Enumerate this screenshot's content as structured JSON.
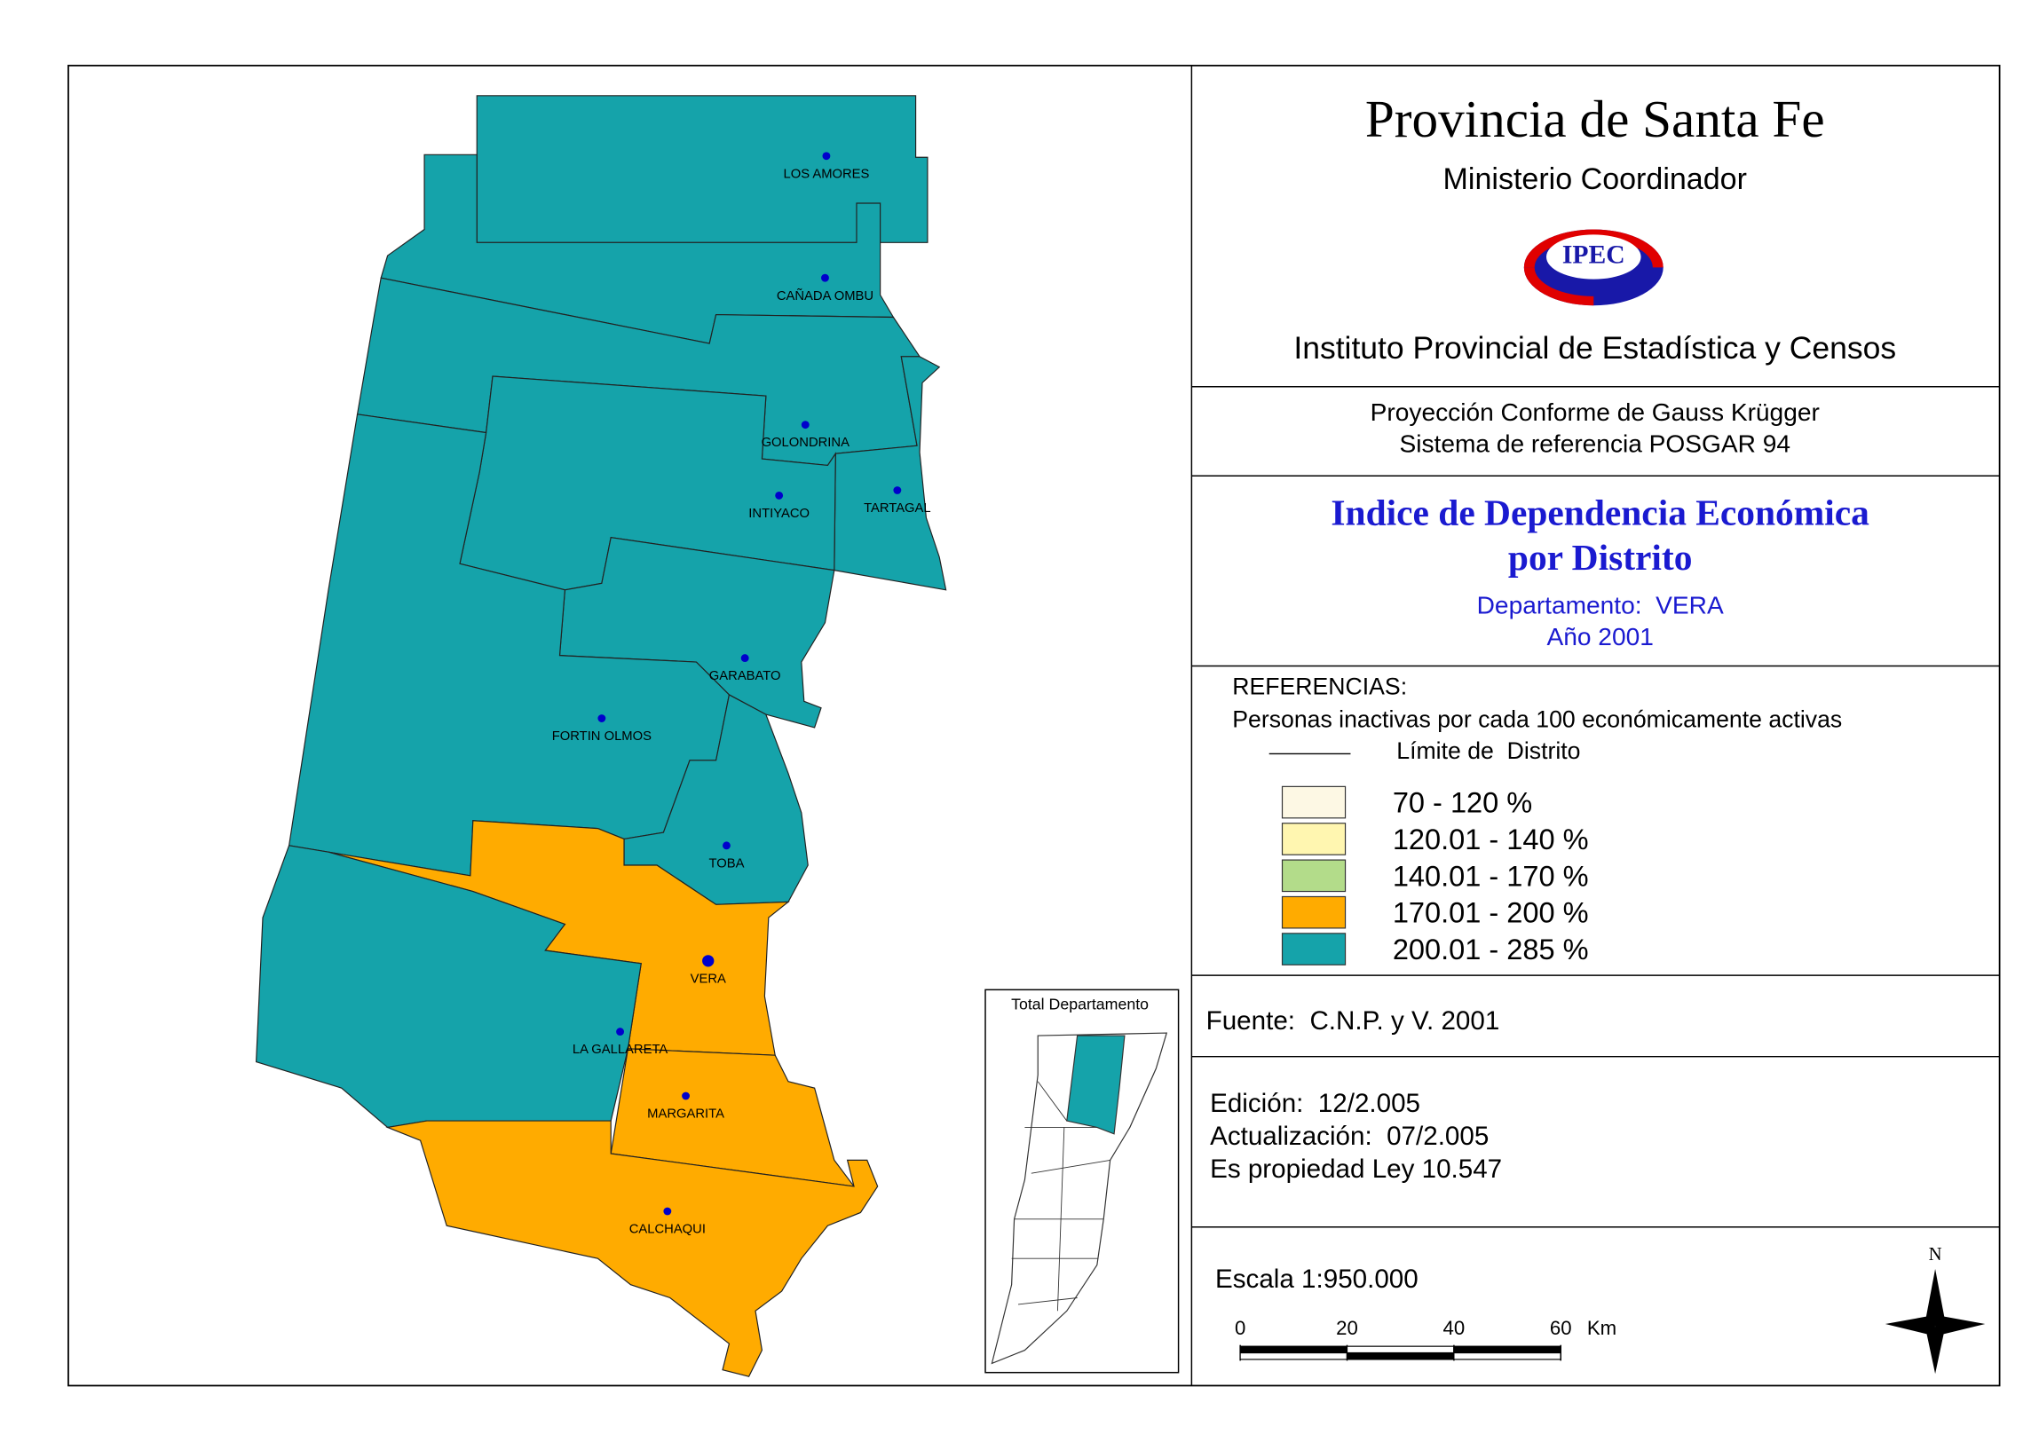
{
  "header": {
    "title": "Provincia de Santa Fe",
    "ministry": "Ministerio Coordinador",
    "logo": "IPEC",
    "institute": "Instituto Provincial de Estadística y Censos"
  },
  "projection": [
    "Proyección Conforme de Gauss Krügger",
    "Sistema de referencia POSGAR 94"
  ],
  "map_title": [
    "Indice de Dependencia Económica",
    "por Distrito"
  ],
  "department": "Departamento:  VERA",
  "year": "Año 2001",
  "legend": {
    "title": "REFERENCIAS:",
    "subtitle": "Personas inactivas por cada 100 económicamente activas",
    "boundary": "Límite de  Distrito",
    "items": [
      {
        "label": "70 - 120 %",
        "color": "#fdf8e4"
      },
      {
        "label": "120.01 - 140 %",
        "color": "#fff6b0"
      },
      {
        "label": "140.01 - 170 %",
        "color": "#b3dc8a"
      },
      {
        "label": "170.01 - 200 %",
        "color": "#ffab00"
      },
      {
        "label": "200.01 - 285 %",
        "color": "#15a3aa"
      }
    ]
  },
  "districts": [
    {
      "name": "LOS AMORES",
      "color": "#15a3aa"
    },
    {
      "name": "CAÑADA OMBU",
      "color": "#15a3aa"
    },
    {
      "name": "GOLONDRINA",
      "color": "#15a3aa"
    },
    {
      "name": "TARTAGAL",
      "color": "#15a3aa"
    },
    {
      "name": "INTIYACO",
      "color": "#15a3aa"
    },
    {
      "name": "GARABATO",
      "color": "#15a3aa"
    },
    {
      "name": "FORTIN OLMOS",
      "color": "#15a3aa"
    },
    {
      "name": "TOBA",
      "color": "#15a3aa"
    },
    {
      "name": "VERA",
      "color": "#ffab00"
    },
    {
      "name": "LA GALLARETA",
      "color": "#15a3aa"
    },
    {
      "name": "MARGARITA",
      "color": "#ffab00"
    },
    {
      "name": "CALCHAQUI",
      "color": "#ffab00"
    }
  ],
  "inset_title": "Total Departamento",
  "source": "Fuente:  C.N.P. y V. 2001",
  "edition": [
    "Edición:  12/2.005",
    "Actualización:  07/2.005",
    "Es propiedad Ley 10.547"
  ],
  "scale": {
    "label": "Escala 1:950.000",
    "ticks": [
      0,
      20,
      40,
      60
    ],
    "unit": "Km"
  },
  "north": "N"
}
